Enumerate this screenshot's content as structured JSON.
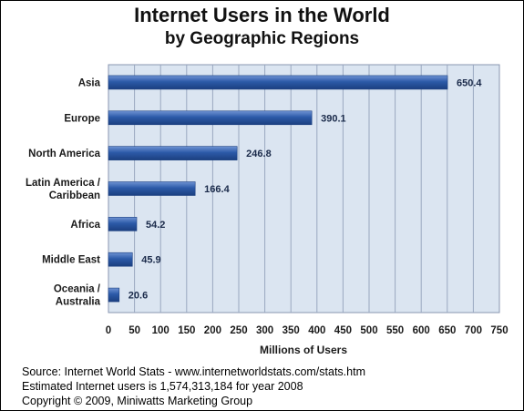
{
  "chart_data": {
    "type": "bar",
    "orientation": "horizontal",
    "title": "Internet Users in the World",
    "subtitle": "by Geographic Regions",
    "categories": [
      [
        "Asia"
      ],
      [
        "Europe"
      ],
      [
        "North America"
      ],
      [
        "Latin America /",
        "Caribbean"
      ],
      [
        "Africa"
      ],
      [
        "Middle East"
      ],
      [
        "Oceania  /",
        "Australia"
      ]
    ],
    "values": [
      650.4,
      390.1,
      246.8,
      166.4,
      54.2,
      45.9,
      20.6
    ],
    "value_labels": [
      "650.4",
      "390.1",
      "246.8",
      "166.4",
      "54.2",
      "45.9",
      "20.6"
    ],
    "xlabel": "Millions of Users",
    "xlim": [
      0,
      750
    ],
    "x_ticks": [
      0,
      50,
      100,
      150,
      200,
      250,
      300,
      350,
      400,
      450,
      500,
      550,
      600,
      650,
      700,
      750
    ],
    "grid": true,
    "colors": {
      "bar": "#2c5aa8",
      "plot_bg": "#dbe5f1",
      "grid": "#9aa8c0"
    }
  },
  "footer": {
    "line1": "Source: Internet World Stats - www.internetworldstats.com/stats.htm",
    "line2": "Estimated Internet users is 1,574,313,184 for year 2008",
    "line3": "Copyright © 2009, Miniwatts Marketing Group"
  }
}
